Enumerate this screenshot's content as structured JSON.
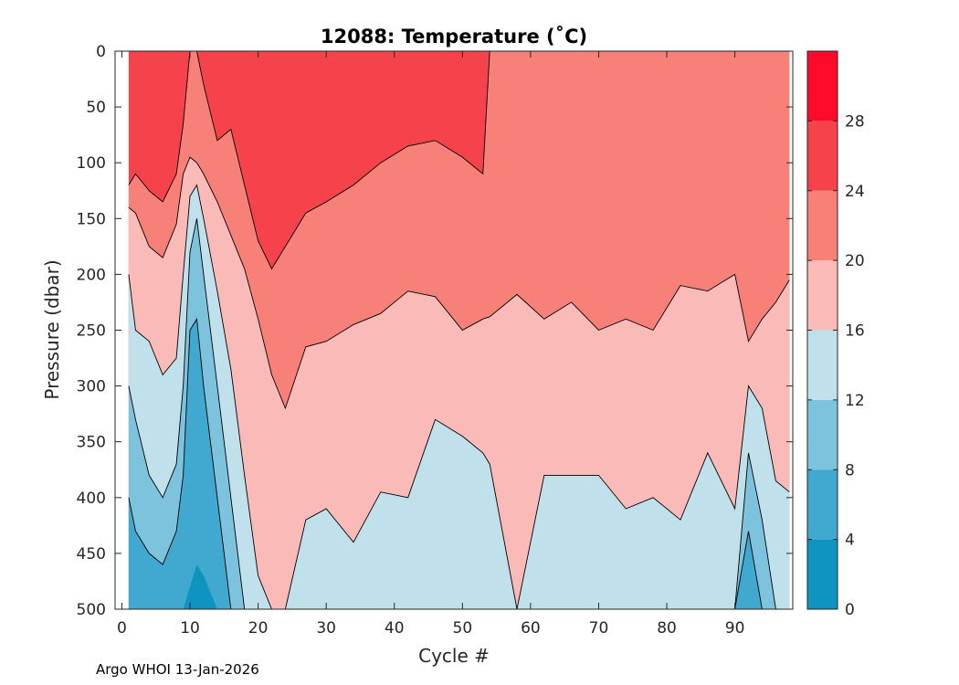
{
  "chart_data": {
    "type": "contourf",
    "title": "12088:  Temperature (˚C)",
    "xlabel": "Cycle #",
    "ylabel": "Pressure (dbar)",
    "xlim": [
      -1,
      98.5
    ],
    "ylim": [
      500,
      0
    ],
    "x_ticks": [
      0,
      10,
      20,
      30,
      40,
      50,
      60,
      70,
      80,
      90
    ],
    "y_ticks": [
      0,
      50,
      100,
      150,
      200,
      250,
      300,
      350,
      400,
      450,
      500
    ],
    "levels": [
      0,
      4,
      8,
      12,
      16,
      20,
      24,
      28,
      32
    ],
    "colorbar_ticks": [
      0,
      4,
      8,
      12,
      16,
      20,
      24,
      28
    ],
    "colors": [
      "#0f93c0",
      "#41a9cf",
      "#7ec3de",
      "#c0e1ec",
      "#fabbb8",
      "#f78078",
      "#f6424a",
      "#fd0a2c"
    ],
    "contour_color": "#000000",
    "isotherms_pressure_dbar": {
      "cycles": [
        1,
        2,
        4,
        6,
        8,
        9,
        10,
        11,
        12,
        14,
        16,
        18,
        20,
        22,
        24,
        27,
        30,
        34,
        38,
        42,
        46,
        50,
        53,
        54,
        58,
        62,
        66,
        70,
        74,
        78,
        82,
        86,
        90,
        92,
        94,
        96,
        98
      ],
      "t24": [
        120,
        110,
        125,
        135,
        110,
        65,
        0,
        0,
        30,
        80,
        70,
        120,
        170,
        195,
        175,
        145,
        135,
        120,
        100,
        85,
        80,
        95,
        110,
        0,
        0,
        0,
        0,
        0,
        0,
        0,
        0,
        0,
        0,
        0,
        0,
        0,
        0
      ],
      "t20": [
        140,
        145,
        175,
        185,
        155,
        110,
        95,
        100,
        110,
        135,
        165,
        195,
        240,
        290,
        320,
        265,
        260,
        245,
        235,
        215,
        220,
        250,
        240,
        238,
        218,
        240,
        225,
        250,
        240,
        250,
        210,
        215,
        200,
        260,
        240,
        225,
        205
      ],
      "t16": [
        200,
        250,
        260,
        290,
        275,
        200,
        130,
        120,
        150,
        215,
        285,
        380,
        470,
        500,
        500,
        420,
        410,
        440,
        395,
        400,
        330,
        345,
        360,
        370,
        500,
        380,
        380,
        380,
        410,
        400,
        420,
        360,
        410,
        300,
        320,
        385,
        395
      ],
      "t12": [
        300,
        330,
        380,
        400,
        370,
        300,
        180,
        150,
        200,
        300,
        400,
        500,
        500,
        500,
        500,
        500,
        500,
        500,
        500,
        500,
        500,
        500,
        500,
        500,
        500,
        500,
        500,
        500,
        500,
        500,
        500,
        500,
        500,
        360,
        420,
        500,
        500
      ],
      "t8": [
        400,
        430,
        450,
        460,
        430,
        380,
        250,
        240,
        300,
        400,
        500,
        500,
        500,
        500,
        500,
        500,
        500,
        500,
        500,
        500,
        500,
        500,
        500,
        500,
        500,
        500,
        500,
        500,
        500,
        500,
        500,
        500,
        500,
        430,
        500,
        500,
        500
      ],
      "t4": [
        500,
        500,
        500,
        500,
        500,
        500,
        480,
        460,
        470,
        500,
        500,
        500,
        500,
        500,
        500,
        500,
        500,
        500,
        500,
        500,
        500,
        500,
        500,
        500,
        500,
        500,
        500,
        500,
        500,
        500,
        500,
        500,
        500,
        500,
        500,
        500,
        500
      ]
    },
    "footer": "Argo WHOI 13-Jan-2026"
  }
}
